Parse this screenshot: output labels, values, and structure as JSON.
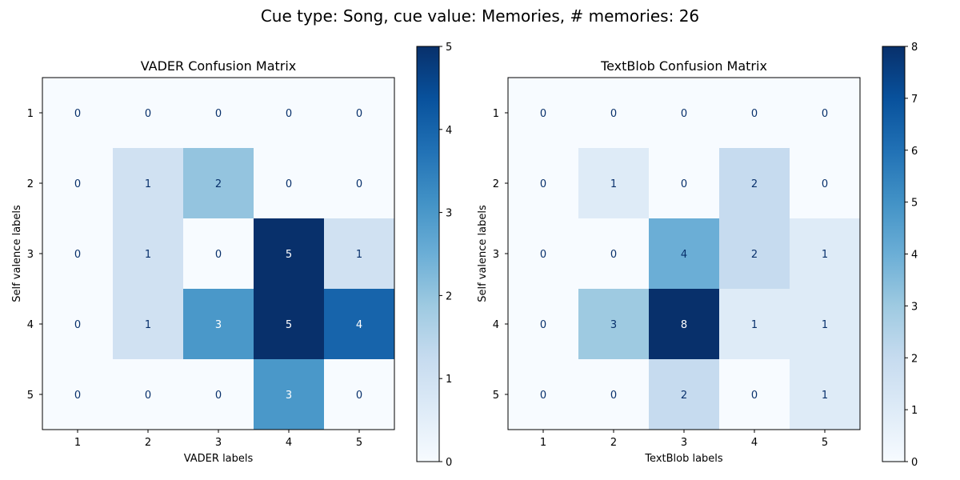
{
  "figure": {
    "suptitle": "Cue type: Song, cue value: Memories, # memories: 26"
  },
  "chart_data": [
    {
      "type": "heatmap",
      "title": "VADER Confusion Matrix",
      "xlabel": "VADER labels",
      "ylabel": "Self valence labels",
      "x_categories": [
        "1",
        "2",
        "3",
        "4",
        "5"
      ],
      "y_categories": [
        "1",
        "2",
        "3",
        "4",
        "5"
      ],
      "values": [
        [
          0,
          0,
          0,
          0,
          0
        ],
        [
          0,
          1,
          2,
          0,
          0
        ],
        [
          0,
          1,
          0,
          5,
          1
        ],
        [
          0,
          1,
          3,
          5,
          4
        ],
        [
          0,
          0,
          0,
          3,
          0
        ]
      ],
      "colormap": "Blues",
      "colorbar": {
        "min": 0,
        "max": 5,
        "ticks": [
          0,
          1,
          2,
          3,
          4,
          5
        ]
      }
    },
    {
      "type": "heatmap",
      "title": "TextBlob Confusion Matrix",
      "xlabel": "TextBlob labels",
      "ylabel": "Self valence labels",
      "x_categories": [
        "1",
        "2",
        "3",
        "4",
        "5"
      ],
      "y_categories": [
        "1",
        "2",
        "3",
        "4",
        "5"
      ],
      "values": [
        [
          0,
          0,
          0,
          0,
          0
        ],
        [
          0,
          1,
          0,
          2,
          0
        ],
        [
          0,
          0,
          4,
          2,
          1
        ],
        [
          0,
          3,
          8,
          1,
          1
        ],
        [
          0,
          0,
          2,
          0,
          1
        ]
      ],
      "colormap": "Blues",
      "colorbar": {
        "min": 0,
        "max": 8,
        "ticks": [
          0,
          1,
          2,
          3,
          4,
          5,
          6,
          7,
          8
        ]
      }
    }
  ]
}
